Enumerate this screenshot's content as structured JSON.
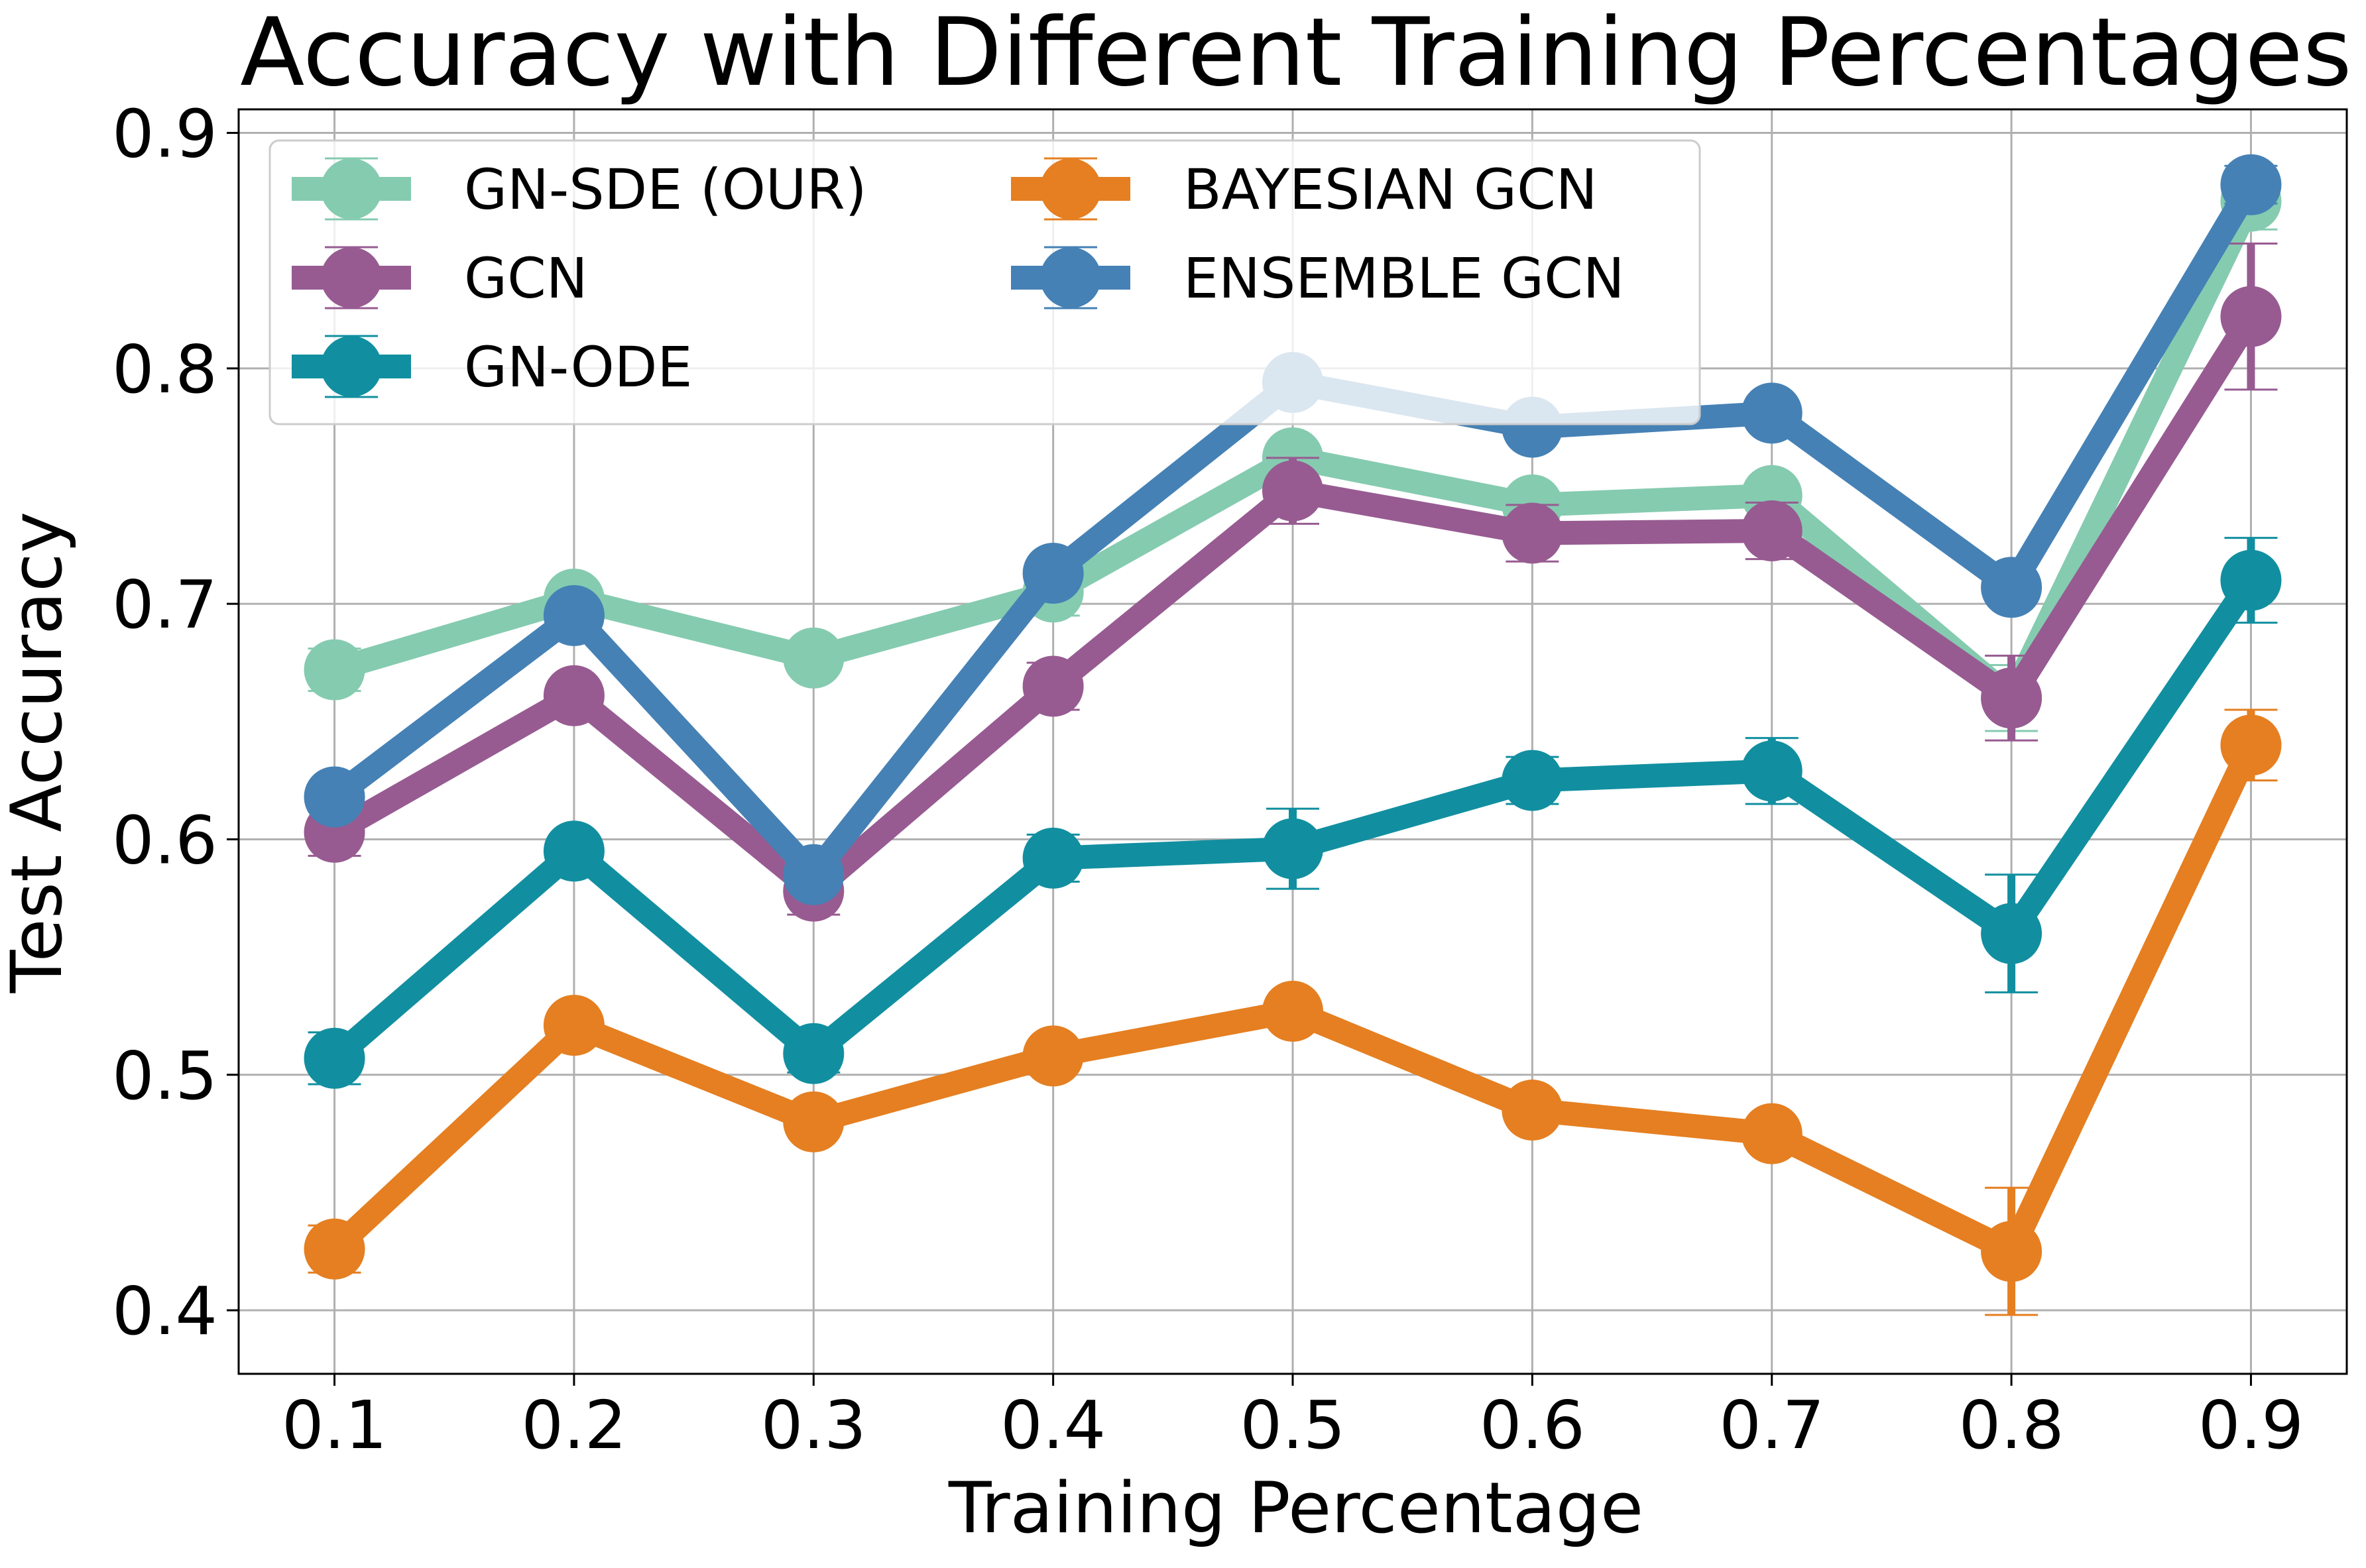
{
  "chart_data": {
    "type": "line",
    "title": "Accuracy with Different Training Percentages",
    "xlabel": "Training Percentage",
    "ylabel": "Test Accuracy",
    "x": [
      0.1,
      0.2,
      0.3,
      0.4,
      0.5,
      0.6,
      0.7,
      0.8,
      0.9
    ],
    "x_tick_labels": [
      "0.1",
      "0.2",
      "0.3",
      "0.4",
      "0.5",
      "0.6",
      "0.7",
      "0.8",
      "0.9"
    ],
    "y_ticks": [
      0.4,
      0.5,
      0.6,
      0.7,
      0.8,
      0.9
    ],
    "y_tick_labels": [
      "0.4",
      "0.5",
      "0.6",
      "0.7",
      "0.8",
      "0.9"
    ],
    "xlim": [
      0.06,
      0.94
    ],
    "ylim": [
      0.373,
      0.91
    ],
    "grid": true,
    "legend_position": "top-left",
    "series": [
      {
        "name": "GN-SDE (OUR)",
        "color": "#85cbb0",
        "values": [
          0.672,
          0.702,
          0.677,
          0.705,
          0.762,
          0.742,
          0.746,
          0.66,
          0.871
        ],
        "errors": [
          0.009,
          0.005,
          0.004,
          0.01,
          0.005,
          0.004,
          0.006,
          0.014,
          0.012
        ]
      },
      {
        "name": "GCN",
        "color": "#975b91",
        "values": [
          0.603,
          0.661,
          0.578,
          0.665,
          0.748,
          0.73,
          0.731,
          0.66,
          0.822
        ],
        "errors": [
          0.01,
          0.005,
          0.01,
          0.01,
          0.014,
          0.012,
          0.012,
          0.018,
          0.031
        ]
      },
      {
        "name": "GN-ODE",
        "color": "#118fa0",
        "values": [
          0.507,
          0.595,
          0.509,
          0.592,
          0.596,
          0.625,
          0.629,
          0.56,
          0.71
        ],
        "errors": [
          0.011,
          0.006,
          0.008,
          0.01,
          0.017,
          0.01,
          0.014,
          0.025,
          0.018
        ]
      },
      {
        "name": "BAYESIAN GCN",
        "color": "#e57f21",
        "values": [
          0.426,
          0.521,
          0.48,
          0.508,
          0.527,
          0.485,
          0.475,
          0.425,
          0.64
        ],
        "errors": [
          0.01,
          0.004,
          0.004,
          0.003,
          0.004,
          0.003,
          0.006,
          0.027,
          0.015
        ]
      },
      {
        "name": "ENSEMBLE GCN",
        "color": "#4581b5",
        "values": [
          0.618,
          0.695,
          0.585,
          0.713,
          0.794,
          0.775,
          0.781,
          0.707,
          0.878
        ],
        "errors": [
          0.004,
          0.005,
          0.004,
          0.004,
          0.004,
          0.003,
          0.003,
          0.003,
          0.008
        ]
      }
    ]
  }
}
